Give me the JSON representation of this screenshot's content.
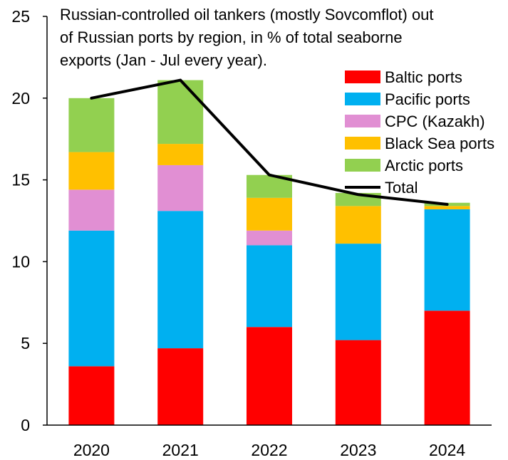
{
  "chart_data": {
    "type": "bar",
    "stacked": true,
    "title_lines": [
      "Russian-controlled oil tankers (mostly Sovcomflot) out",
      "of Russian ports by region, in % of total seaborne",
      "exports (Jan - Jul every year)."
    ],
    "xlabel": "",
    "ylabel": "",
    "ylim": [
      0,
      25
    ],
    "yticks": [
      "0",
      "5",
      "10",
      "15",
      "20",
      "25"
    ],
    "categories": [
      "2020",
      "2021",
      "2022",
      "2023",
      "2024"
    ],
    "series": [
      {
        "name": "Baltic ports",
        "color": "#ff0000",
        "values": [
          3.6,
          4.7,
          6.0,
          5.2,
          7.0
        ]
      },
      {
        "name": "Pacific ports",
        "color": "#00b0f0",
        "values": [
          8.3,
          8.4,
          5.0,
          5.9,
          6.2
        ]
      },
      {
        "name": "CPC (Kazakh)",
        "color": "#e18fd3",
        "values": [
          2.5,
          2.8,
          0.9,
          0.0,
          0.0
        ]
      },
      {
        "name": "Black Sea ports",
        "color": "#ffc000",
        "values": [
          2.3,
          1.3,
          2.0,
          2.3,
          0.2
        ]
      },
      {
        "name": "Arctic ports",
        "color": "#92d050",
        "values": [
          3.3,
          3.9,
          1.4,
          0.8,
          0.2
        ]
      }
    ],
    "line": {
      "name": "Total",
      "color": "#000000",
      "values": [
        20.0,
        21.1,
        15.3,
        14.1,
        13.5
      ]
    },
    "legend_position": "top-right",
    "grid": false
  }
}
